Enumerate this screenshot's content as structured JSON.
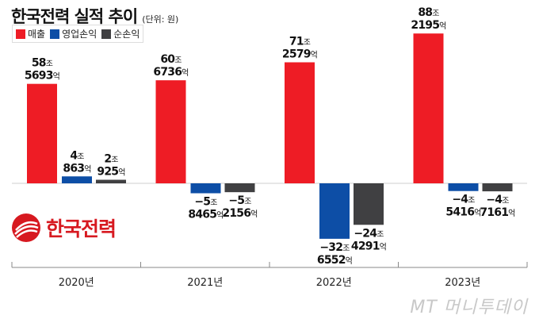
{
  "header": {
    "title": "한국전력 실적 추이",
    "unit": "(단위: 원)"
  },
  "logo_text": "한국전력",
  "watermark": "MT 머니투데이",
  "chart_data": {
    "type": "bar",
    "title": "한국전력 실적 추이",
    "unit": "억원",
    "categories": [
      "2020년",
      "2021년",
      "2022년",
      "2023년"
    ],
    "legend_position": "top-left",
    "grid": false,
    "series": [
      {
        "name": "매출",
        "color": "#ee1c25",
        "values": [
          585693,
          606736,
          712579,
          882195
        ],
        "labels": [
          [
            "58조",
            "5693억"
          ],
          [
            "60조",
            "6736억"
          ],
          [
            "71조",
            "2579억"
          ],
          [
            "88조",
            "2195억"
          ]
        ]
      },
      {
        "name": "영업손익",
        "color": "#0d4ea6",
        "values": [
          40863,
          -58465,
          -326552,
          -45416
        ],
        "labels": [
          [
            "4조",
            "863억"
          ],
          [
            "−5조",
            "8465억"
          ],
          [
            "−32조",
            "6552억"
          ],
          [
            "−4조",
            "5416억"
          ]
        ]
      },
      {
        "name": "순손익",
        "color": "#404042",
        "values": [
          20925,
          -52156,
          -244291,
          -47161
        ],
        "labels": [
          [
            "2조",
            "925억"
          ],
          [
            "−5조",
            "2156억"
          ],
          [
            "−24조",
            "4291억"
          ],
          [
            "−4조",
            "7161억"
          ]
        ]
      }
    ]
  }
}
